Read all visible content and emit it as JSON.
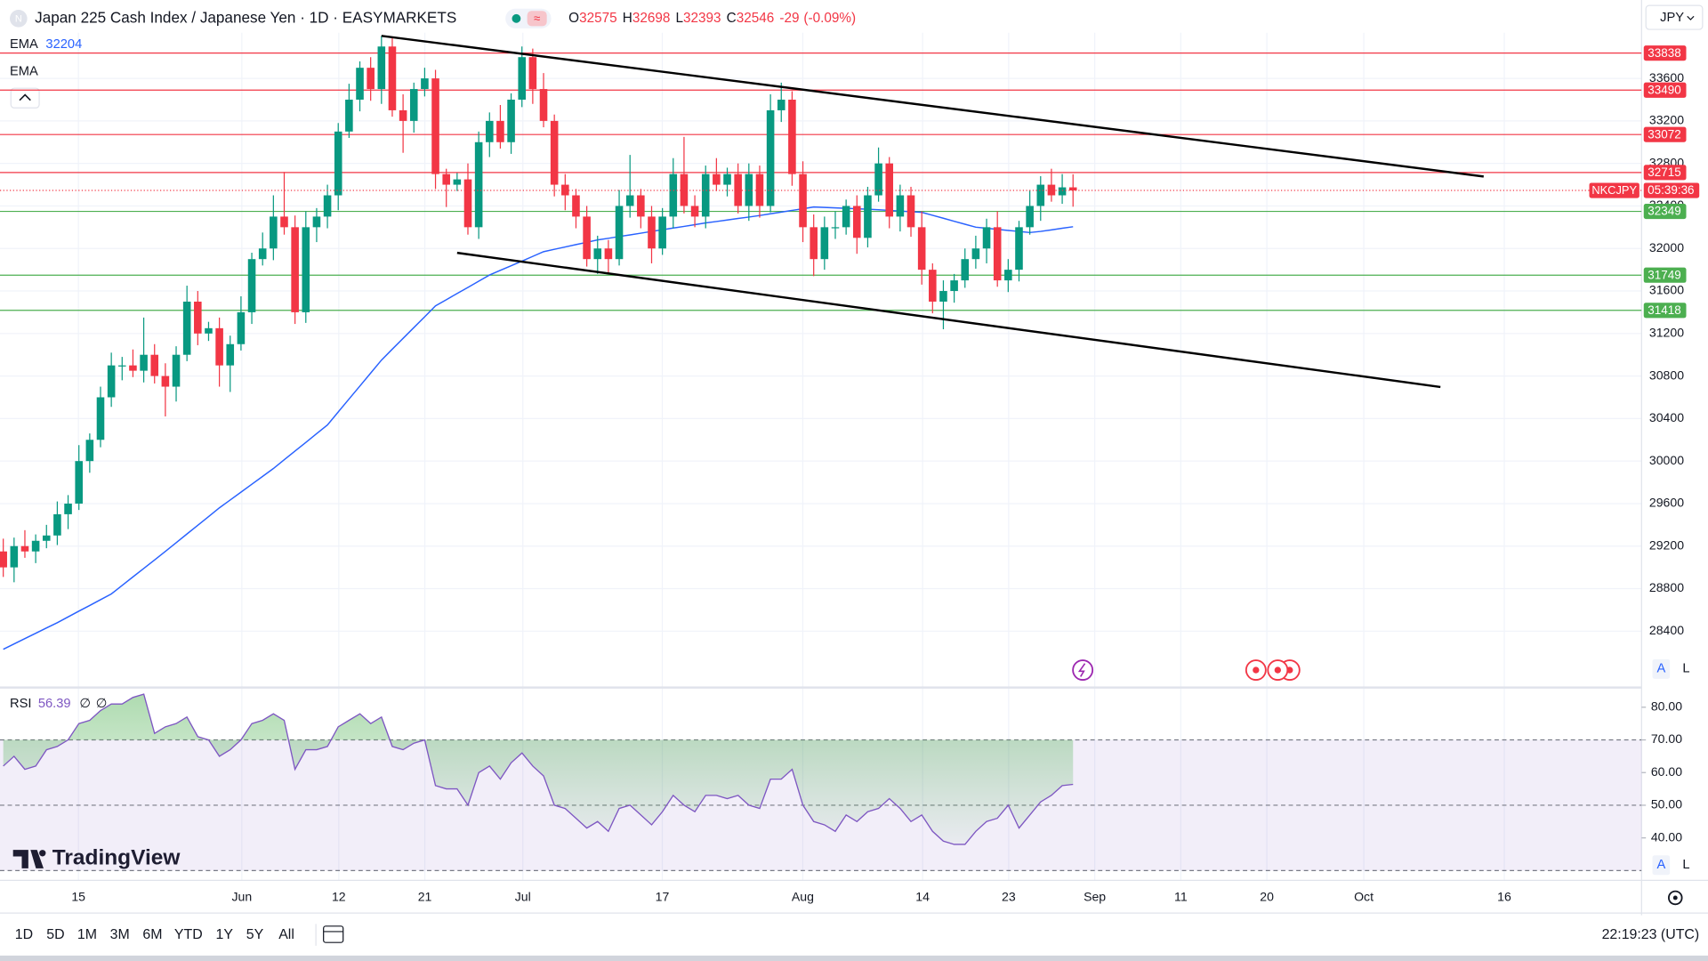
{
  "chart_data": {
    "type": "candlestick",
    "title": "Japan 225 Cash Index / Japanese Yen · 1D · EASYMARKETS",
    "ohlc_labels": [
      "O",
      "H",
      "L",
      "C"
    ],
    "change": "-29",
    "change_percent": "(-0.09%)",
    "currency": "JPY",
    "symbol": "NKCJPY",
    "countdown": "05:39:36",
    "up_color": "#089981",
    "down_color": "#f23645",
    "ylim": [
      27880,
      34030
    ],
    "yticks": [
      28400,
      28800,
      29200,
      29600,
      30000,
      30400,
      30800,
      31200,
      31600,
      32000,
      32400,
      32800,
      33200,
      33600
    ],
    "grid": true,
    "xticks": [
      "15",
      "Jun",
      "12",
      "21",
      "Jul",
      "17",
      "Aug",
      "14",
      "23",
      "Sep",
      "11",
      "20",
      "Oct",
      "16"
    ],
    "candles": {
      "open": [
        29150,
        29000,
        29200,
        29150,
        29250,
        29300,
        29500,
        29600,
        30000,
        30200,
        30600,
        30900,
        30900,
        30850,
        31000,
        30800,
        30700,
        31000,
        31500,
        31200,
        31250,
        30900,
        31100,
        31400,
        31900,
        32000,
        32300,
        32200,
        31400,
        32200,
        32300,
        32500,
        33100,
        33400,
        33700,
        33500,
        33900,
        33300,
        33200,
        33500,
        33600,
        32700,
        32600,
        32650,
        32200,
        33000,
        33200,
        33000,
        33400,
        33800,
        33500,
        33200,
        32600,
        32500,
        32300,
        31900,
        32000,
        31900,
        32400,
        32500,
        32300,
        32000,
        32300,
        32700,
        32400,
        32300,
        32700,
        32600,
        32700,
        32400,
        32700,
        32400,
        33300,
        33400,
        32700,
        32200,
        31900,
        32200,
        32200,
        32400,
        32100,
        32500,
        32800,
        32300,
        32500,
        32200,
        31800,
        31500,
        31600,
        31700,
        31900,
        32000,
        32200,
        31700,
        31800,
        32200,
        32400,
        32600,
        32500,
        32575
      ],
      "high": [
        29270,
        29280,
        29350,
        29310,
        29400,
        29620,
        29680,
        30150,
        30260,
        30700,
        31020,
        30980,
        31050,
        31350,
        31100,
        30920,
        31080,
        31650,
        31600,
        31310,
        31350,
        31180,
        31550,
        31960,
        32150,
        32500,
        32720,
        32310,
        32350,
        32380,
        32600,
        33180,
        33550,
        33760,
        33800,
        34000,
        33980,
        33450,
        33560,
        33700,
        33680,
        32750,
        32710,
        32800,
        33100,
        33280,
        33350,
        33460,
        33900,
        33880,
        33650,
        33260,
        32700,
        32560,
        32400,
        32120,
        32080,
        32550,
        32880,
        32560,
        32400,
        32380,
        32850,
        33050,
        32500,
        32780,
        32850,
        32760,
        32800,
        32800,
        32780,
        33450,
        33560,
        33480,
        32820,
        32320,
        32300,
        32350,
        32460,
        32500,
        32580,
        32950,
        32860,
        32600,
        32580,
        32350,
        31860,
        31700,
        31760,
        32000,
        32120,
        32280,
        32350,
        31900,
        32260,
        32550,
        32680,
        32750,
        32700,
        32698
      ],
      "low": [
        28910,
        28860,
        29090,
        29040,
        29180,
        29210,
        29360,
        29540,
        29890,
        30130,
        30510,
        30760,
        30790,
        30740,
        30730,
        30420,
        30560,
        30940,
        31090,
        31130,
        30700,
        30650,
        31040,
        31290,
        31840,
        31890,
        32130,
        31290,
        31300,
        32060,
        32190,
        32360,
        33040,
        33290,
        33390,
        33360,
        33240,
        32900,
        33090,
        33430,
        32560,
        32390,
        32540,
        32130,
        32090,
        32860,
        32940,
        32890,
        33330,
        33360,
        33140,
        32490,
        32360,
        32190,
        31830,
        31760,
        31760,
        31840,
        32290,
        32190,
        31860,
        31940,
        32190,
        32330,
        32200,
        32190,
        32540,
        32490,
        32330,
        32260,
        32290,
        32340,
        33190,
        32590,
        32060,
        31740,
        31800,
        32090,
        32130,
        31950,
        32010,
        32440,
        32190,
        32160,
        32110,
        31660,
        31390,
        31240,
        31490,
        31630,
        31810,
        31860,
        31640,
        31590,
        31690,
        32130,
        32260,
        32440,
        32420,
        32393
      ],
      "close": [
        29000,
        29200,
        29150,
        29250,
        29300,
        29500,
        29600,
        30000,
        30200,
        30600,
        30900,
        30900,
        30850,
        31000,
        30800,
        30700,
        31000,
        31500,
        31200,
        31250,
        30900,
        31100,
        31400,
        31900,
        32000,
        32300,
        32200,
        31400,
        32200,
        32300,
        32500,
        33100,
        33400,
        33700,
        33500,
        33900,
        33300,
        33200,
        33500,
        33600,
        32700,
        32600,
        32650,
        32200,
        33000,
        33200,
        33000,
        33400,
        33800,
        33500,
        33200,
        32600,
        32500,
        32300,
        31900,
        32000,
        31900,
        32400,
        32500,
        32300,
        32000,
        32300,
        32700,
        32400,
        32300,
        32700,
        32600,
        32700,
        32400,
        32700,
        32400,
        33300,
        33400,
        32700,
        32200,
        31900,
        32200,
        32200,
        32400,
        32100,
        32500,
        32800,
        32300,
        32500,
        32200,
        31800,
        31500,
        31600,
        31700,
        31900,
        32000,
        32200,
        31700,
        31800,
        32200,
        32400,
        32600,
        32500,
        32575,
        32546
      ]
    },
    "ema": {
      "name": "EMA",
      "value": 32204,
      "color": "#2962ff",
      "second_name": "EMA",
      "values": [
        28230,
        28280,
        28330,
        28380,
        28430,
        28480,
        28534,
        28588,
        28642,
        28696,
        28750,
        28830,
        28910,
        28990,
        29070,
        29150,
        29232,
        29314,
        29396,
        29478,
        29560,
        29634,
        29708,
        29782,
        29856,
        29930,
        30012,
        30094,
        30176,
        30258,
        30340,
        30462,
        30584,
        30706,
        30828,
        30950,
        31052,
        31154,
        31256,
        31358,
        31460,
        31518,
        31576,
        31634,
        31692,
        31750,
        31794,
        31838,
        31882,
        31926,
        31970,
        31992,
        32014,
        32036,
        32058,
        32080,
        32096,
        32112,
        32128,
        32144,
        32160,
        32176,
        32192,
        32208,
        32224,
        32240,
        32254,
        32268,
        32282,
        32296,
        32310,
        32326,
        32342,
        32358,
        32374,
        32390,
        32386,
        32382,
        32378,
        32374,
        32370,
        32364,
        32358,
        32352,
        32346,
        32340,
        32312,
        32284,
        32256,
        32228,
        32200,
        32190,
        32180,
        32170,
        32160,
        32150,
        32160,
        32175,
        32190,
        32204
      ]
    },
    "levels": [
      {
        "value": 33838,
        "color": "#f23645"
      },
      {
        "value": 33490,
        "color": "#f23645"
      },
      {
        "value": 33072,
        "color": "#f23645"
      },
      {
        "value": 32715,
        "color": "#f23645"
      },
      {
        "value": 32349,
        "color": "#4caf50"
      },
      {
        "value": 31749,
        "color": "#4caf50"
      },
      {
        "value": 31418,
        "color": "#4caf50"
      }
    ],
    "trendlines": [
      {
        "x": [
          35,
          137
        ],
        "y": [
          34000,
          32677
        ]
      },
      {
        "x": [
          42,
          133
        ],
        "y": [
          31959,
          30697
        ]
      }
    ],
    "rsi": {
      "name": "RSI",
      "value": 56.39,
      "nan_marks": [
        "∅",
        "∅"
      ],
      "color": "#7e57c2",
      "ylim": [
        27,
        85.7
      ],
      "yticks": [
        {
          "value": 80,
          "label": "80.00"
        },
        {
          "value": 70,
          "label": "70.00"
        },
        {
          "value": 60,
          "label": "60.00"
        },
        {
          "value": 50,
          "label": "50.00"
        },
        {
          "value": 40,
          "label": "40.00"
        }
      ],
      "bands": [
        70,
        50,
        30
      ],
      "values": [
        62,
        65,
        61,
        62,
        67,
        68,
        70,
        75,
        76,
        79,
        81,
        81,
        83,
        84,
        72,
        74,
        75,
        77,
        71,
        70,
        65,
        67,
        70,
        75,
        76,
        78,
        76,
        61,
        67,
        67,
        68,
        74,
        76,
        78,
        75,
        77,
        68,
        67,
        69,
        70,
        56,
        55,
        55,
        50,
        60,
        62,
        58,
        63,
        66,
        62,
        59,
        50,
        49,
        46,
        43,
        45,
        42,
        49,
        50,
        47,
        44,
        48,
        53,
        50,
        48,
        53,
        53,
        52,
        53,
        50,
        49,
        58,
        58,
        61,
        50,
        45,
        44,
        42,
        47,
        45,
        48,
        49,
        52,
        49,
        45,
        47,
        42,
        39,
        38,
        38,
        42,
        45,
        46,
        50,
        43,
        47,
        51,
        53,
        56,
        56.39
      ]
    },
    "scale_buttons": [
      "A",
      "L"
    ],
    "brand": "TradingView"
  },
  "toolbar": {
    "periods": [
      "1D",
      "5D",
      "1M",
      "3M",
      "6M",
      "YTD",
      "1Y",
      "5Y",
      "All"
    ],
    "clock": "22:19:23 (UTC)"
  }
}
